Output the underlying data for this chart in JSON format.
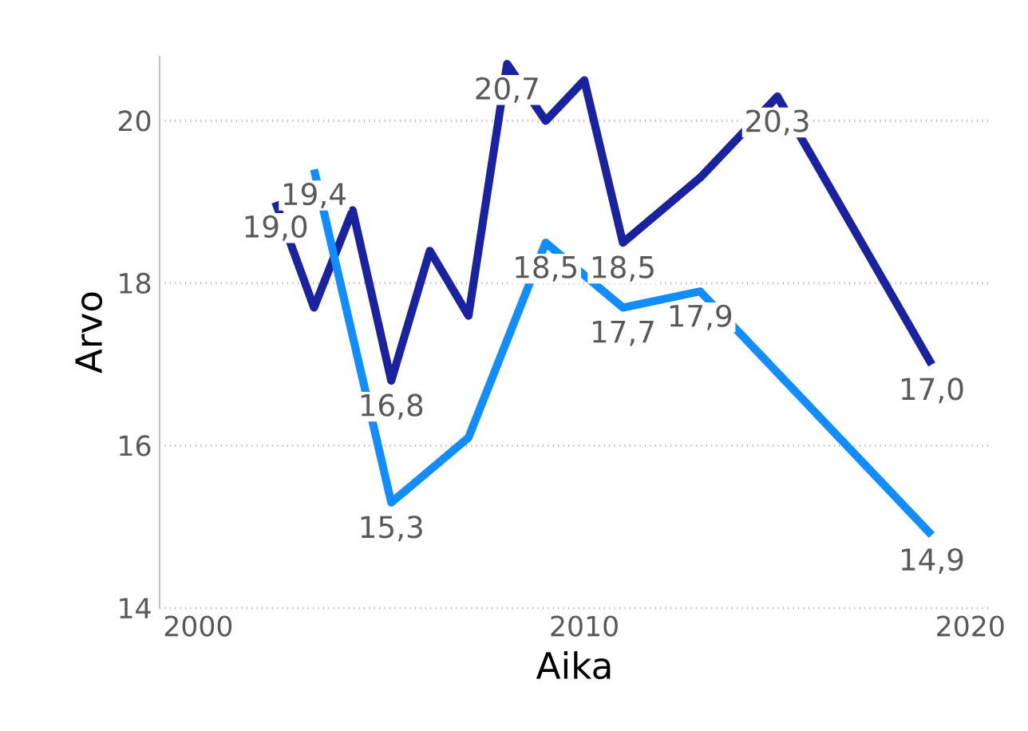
{
  "chart_data": {
    "type": "line",
    "xlabel": "Aika",
    "ylabel": "Arvo",
    "xlim": [
      1999,
      2020.5
    ],
    "ylim": [
      14,
      20.8
    ],
    "xticks": [
      2000,
      2010,
      2020
    ],
    "yticks": [
      14,
      16,
      18,
      20
    ],
    "grid": "y",
    "marker": "none",
    "line_style": "solid",
    "series": [
      {
        "color": "#1a22a0",
        "x": [
          2002,
          2003,
          2004,
          2005,
          2006,
          2007,
          2008,
          2009,
          2010,
          2011,
          2013,
          2015,
          2019
        ],
        "values": [
          19.0,
          17.7,
          18.9,
          16.8,
          18.4,
          17.6,
          20.7,
          20.0,
          20.5,
          18.5,
          19.3,
          20.3,
          17.0
        ],
        "value_labels": [
          "19,0",
          null,
          null,
          "16,8",
          null,
          null,
          "20,7",
          null,
          null,
          "18,5",
          null,
          "20,3",
          "17,0"
        ]
      },
      {
        "color": "#118dff",
        "x": [
          2003,
          2005,
          2007,
          2009,
          2011,
          2013,
          2019
        ],
        "values": [
          19.4,
          15.3,
          16.1,
          18.5,
          17.7,
          17.9,
          14.9
        ],
        "value_labels": [
          "19,4",
          "15,3",
          null,
          "18,5",
          "17,7",
          "17,9",
          "14,9"
        ]
      }
    ]
  }
}
